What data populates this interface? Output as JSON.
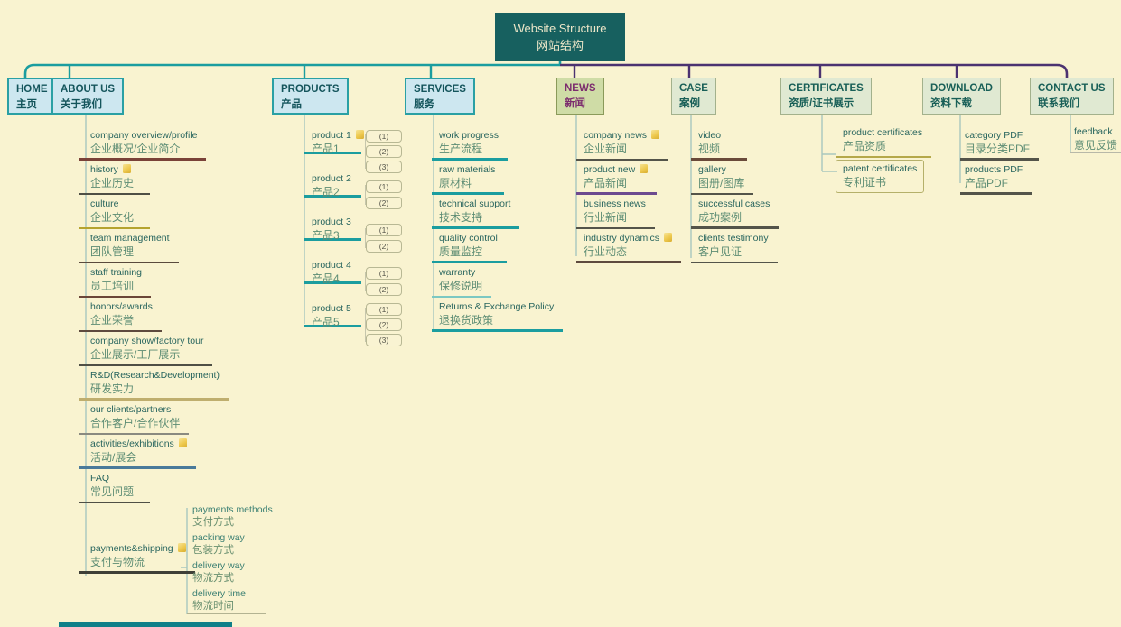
{
  "root": {
    "en": "Website Structure",
    "zh": "网站结构"
  },
  "colors": {
    "background": "#f9f3d0",
    "root_fill": "#17605f",
    "teal_branch": "#1b9d9f",
    "purple_branch": "#4b3270",
    "blue_topic_fill": "#cde7f0",
    "green_topic_fill": "#e0e9d2",
    "news_topic_fill": "#cfdca6",
    "note_icon": "#eec94e"
  },
  "branches": [
    {
      "id": "home",
      "en": "HOME",
      "zh": "主页",
      "children": []
    },
    {
      "id": "about",
      "en": "ABOUT US",
      "zh": "关于我们",
      "children": [
        {
          "en": "company overview/profile",
          "zh": "企业概况/企业简介",
          "line": "#7a4238",
          "w": 3
        },
        {
          "en": "history",
          "zh": "企业历史",
          "note": true,
          "line": "#4f4f45"
        },
        {
          "en": "culture",
          "zh": "企业文化",
          "line": "#b5a32e"
        },
        {
          "en": "team management",
          "zh": "团队管理",
          "line": "#5a4a3c"
        },
        {
          "en": "staff training",
          "zh": "员工培训",
          "line": "#6b4638"
        },
        {
          "en": "honors/awards",
          "zh": "企业荣誉",
          "line": "#5e4a3e"
        },
        {
          "en": "company show/factory tour",
          "zh": "企业展示/工厂展示",
          "line": "#4f4f45",
          "w": 3
        },
        {
          "en": "R&D(Research&Development)",
          "zh": "研发实力",
          "line": "#bfae6e",
          "w": 3
        },
        {
          "en": "our clients/partners",
          "zh": "合作客户/合作伙伴",
          "line": "#8a8a80"
        },
        {
          "en": "activities/exhibitions",
          "zh": "活动/展会",
          "note": true,
          "line": "#4a7a9a",
          "w": 3
        },
        {
          "en": "FAQ",
          "zh": "常见问题",
          "line": "#4f4f45"
        },
        {
          "en": "payments&shipping",
          "zh": "支付与物流",
          "note": true,
          "line": "#3f3f37",
          "w": 3,
          "mt": 42,
          "subs": [
            {
              "en": "payments methods",
              "zh": "支付方式"
            },
            {
              "en": "packing way",
              "zh": "包装方式"
            },
            {
              "en": "delivery way",
              "zh": "物流方式"
            },
            {
              "en": "delivery time",
              "zh": "物流时间"
            }
          ]
        }
      ]
    },
    {
      "id": "products",
      "en": "PRODUCTS",
      "zh": "产品",
      "children": [
        {
          "en": "product 1",
          "zh": "产品1",
          "note": true,
          "subs": [
            "(1)",
            "(2)",
            "(3)"
          ]
        },
        {
          "en": "product 2",
          "zh": "产品2",
          "subs": [
            "(1)",
            "(2)"
          ]
        },
        {
          "en": "product 3",
          "zh": "产品3",
          "subs": [
            "(1)",
            "(2)"
          ]
        },
        {
          "en": "product 4",
          "zh": "产品4",
          "subs": [
            "(1)",
            "(2)"
          ]
        },
        {
          "en": "product 5",
          "zh": "产品5",
          "subs": [
            "(1)",
            "(2)",
            "(3)"
          ]
        }
      ]
    },
    {
      "id": "services",
      "en": "SERVICES",
      "zh": "服务",
      "children": [
        {
          "en": "work progress",
          "zh": "生产流程",
          "line": "#1b9d9f",
          "w": 3
        },
        {
          "en": "raw materials",
          "zh": "原材料",
          "line": "#1b9d9f",
          "w": 3
        },
        {
          "en": "technical support",
          "zh": "技术支持",
          "line": "#1b9d9f",
          "w": 3
        },
        {
          "en": "quality control",
          "zh": "质量监控",
          "line": "#1b9d9f",
          "w": 3
        },
        {
          "en": "warranty",
          "zh": "保修说明",
          "line": "#7cc8c2"
        },
        {
          "en": "Returns & Exchange Policy",
          "zh": "退换货政策",
          "line": "#1b9d9f",
          "w": 3
        }
      ]
    },
    {
      "id": "news",
      "en": "NEWS",
      "zh": "新闻",
      "children": [
        {
          "en": "company news",
          "zh": "企业新闻",
          "note": true,
          "line": "#54544a"
        },
        {
          "en": "product new",
          "zh": "产品新闻",
          "note": true,
          "line": "#6d4a8f",
          "w": 3
        },
        {
          "en": "business news",
          "zh": "行业新闻",
          "line": "#54544a"
        },
        {
          "en": "industry dynamics",
          "zh": "行业动态",
          "note": true,
          "line": "#5e4a3e",
          "w": 3
        }
      ]
    },
    {
      "id": "case",
      "en": "CASE",
      "zh": "案例",
      "children": [
        {
          "en": "video",
          "zh": "视频",
          "line": "#6a4a3a",
          "w": 3
        },
        {
          "en": "gallery",
          "zh": "图册/图库",
          "line": "#54544a"
        },
        {
          "en": "successful cases",
          "zh": "成功案例",
          "line": "#54544a",
          "w": 3
        },
        {
          "en": "clients testimony",
          "zh": "客户见证",
          "line": "#54544a"
        }
      ]
    },
    {
      "id": "certificates",
      "en": "CERTIFICATES",
      "zh": "资质/证书展示",
      "children": [
        {
          "en": "product certificates",
          "zh": "产品资质",
          "line": "#b5a84a"
        },
        {
          "en": "patent certificates",
          "zh": "专利证书",
          "boxed": true
        }
      ]
    },
    {
      "id": "download",
      "en": "DOWNLOAD",
      "zh": "资料下载",
      "children": [
        {
          "en": "category PDF",
          "zh": "目录分类PDF",
          "line": "#54544a",
          "w": 3
        },
        {
          "en": "products PDF",
          "zh": "产品PDF",
          "line": "#54544a",
          "w": 3
        }
      ]
    },
    {
      "id": "contact",
      "en": "CONTACT US",
      "zh": "联系我们",
      "children": [
        {
          "en": "feedback",
          "zh": "意见反馈",
          "line": "#b8b8a8"
        }
      ]
    }
  ]
}
